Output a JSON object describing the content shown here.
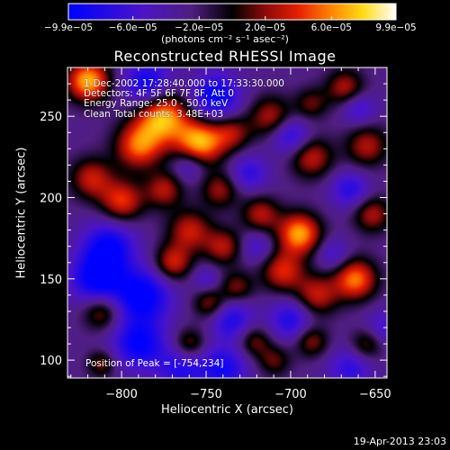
{
  "chart_data": {
    "type": "heatmap",
    "title": "Reconstructed RHESSI Image",
    "xlabel": "Heliocentric X (arcsec)",
    "ylabel": "Heliocentric Y (arcsec)",
    "xlim": [
      -832,
      -643
    ],
    "ylim": [
      89,
      280
    ],
    "x_ticks": [
      -800,
      -750,
      -700,
      -650
    ],
    "x_tick_labels": [
      "−800",
      "−750",
      "−700",
      "−650"
    ],
    "y_ticks": [
      100,
      150,
      200,
      250
    ],
    "y_tick_labels": [
      "100",
      "150",
      "200",
      "250"
    ],
    "colorbar": {
      "min": -9.9e-05,
      "max": 9.9e-05,
      "tick_labels": [
        "−9.9e−05",
        "−6.0e−05",
        "−2.0e−05",
        "2.0e−05",
        "6.0e−05",
        "9.9e−05"
      ],
      "tick_values": [
        -9.9e-05,
        -6e-05,
        -2e-05,
        2e-05,
        6e-05,
        9.9e-05
      ],
      "units_label": "(photons cm⁻² s⁻¹ asec⁻²)",
      "colors": [
        "#0000ff",
        "#4b0082",
        "#000000",
        "#8b0000",
        "#ff0000",
        "#ff8c00",
        "#ffff00",
        "#ffffff"
      ]
    },
    "info_lines": [
      "1-Dec-2002 17:28:40.000 to 17:33:30.000",
      "Detectors: 4F 5F 6F 7F 8F, Att 0",
      "Energy Range: 25.0 - 50.0 keV",
      "Clean     Total counts: 3.48E+03"
    ],
    "peak_label": "Position of Peak = [-754,234]",
    "blobs": [
      {
        "x": -820,
        "y": 272,
        "v": 1.0,
        "s": 9
      },
      {
        "x": -776,
        "y": 250,
        "v": 1.0,
        "s": 11
      },
      {
        "x": -790,
        "y": 232,
        "v": 0.8,
        "s": 10
      },
      {
        "x": -754,
        "y": 234,
        "v": 1.0,
        "s": 10
      },
      {
        "x": -735,
        "y": 240,
        "v": 0.5,
        "s": 8
      },
      {
        "x": -712,
        "y": 250,
        "v": 0.55,
        "s": 9
      },
      {
        "x": -688,
        "y": 258,
        "v": 0.4,
        "s": 7
      },
      {
        "x": -668,
        "y": 268,
        "v": 0.55,
        "s": 8
      },
      {
        "x": -688,
        "y": 225,
        "v": 0.6,
        "s": 9
      },
      {
        "x": -655,
        "y": 232,
        "v": 0.55,
        "s": 9
      },
      {
        "x": -818,
        "y": 212,
        "v": 0.6,
        "s": 9
      },
      {
        "x": -800,
        "y": 198,
        "v": 0.7,
        "s": 9
      },
      {
        "x": -775,
        "y": 205,
        "v": 0.55,
        "s": 8
      },
      {
        "x": -742,
        "y": 205,
        "v": 0.5,
        "s": 8
      },
      {
        "x": -760,
        "y": 180,
        "v": 0.6,
        "s": 9
      },
      {
        "x": -770,
        "y": 160,
        "v": 0.65,
        "s": 8
      },
      {
        "x": -740,
        "y": 170,
        "v": 0.55,
        "s": 8
      },
      {
        "x": -718,
        "y": 190,
        "v": 0.55,
        "s": 8
      },
      {
        "x": -695,
        "y": 178,
        "v": 0.95,
        "s": 9
      },
      {
        "x": -705,
        "y": 155,
        "v": 0.65,
        "s": 9
      },
      {
        "x": -685,
        "y": 140,
        "v": 0.6,
        "s": 9
      },
      {
        "x": -662,
        "y": 150,
        "v": 0.85,
        "s": 9
      },
      {
        "x": -652,
        "y": 190,
        "v": 0.55,
        "s": 8
      },
      {
        "x": -732,
        "y": 145,
        "v": 0.45,
        "s": 7
      },
      {
        "x": -748,
        "y": 135,
        "v": 0.5,
        "s": 7
      },
      {
        "x": -812,
        "y": 130,
        "v": 0.55,
        "s": 8
      },
      {
        "x": -760,
        "y": 110,
        "v": 0.5,
        "s": 7
      },
      {
        "x": -722,
        "y": 112,
        "v": 0.45,
        "s": 7
      },
      {
        "x": -710,
        "y": 100,
        "v": 0.4,
        "s": 7
      },
      {
        "x": -688,
        "y": 112,
        "v": 0.5,
        "s": 7
      },
      {
        "x": -812,
        "y": 98,
        "v": 0.45,
        "s": 6
      },
      {
        "x": -655,
        "y": 110,
        "v": 0.45,
        "s": 7
      },
      {
        "x": -785,
        "y": 270,
        "v": -0.7,
        "s": 10
      },
      {
        "x": -745,
        "y": 262,
        "v": -0.75,
        "s": 10
      },
      {
        "x": -700,
        "y": 238,
        "v": -0.55,
        "s": 8
      },
      {
        "x": -660,
        "y": 255,
        "v": -0.4,
        "s": 7
      },
      {
        "x": -808,
        "y": 170,
        "v": -0.7,
        "s": 11
      },
      {
        "x": -815,
        "y": 150,
        "v": -0.75,
        "s": 11
      },
      {
        "x": -788,
        "y": 140,
        "v": -0.8,
        "s": 12
      },
      {
        "x": -790,
        "y": 110,
        "v": -0.7,
        "s": 11
      },
      {
        "x": -765,
        "y": 95,
        "v": -0.5,
        "s": 10
      },
      {
        "x": -735,
        "y": 125,
        "v": -0.55,
        "s": 9
      },
      {
        "x": -740,
        "y": 95,
        "v": -0.6,
        "s": 10
      },
      {
        "x": -700,
        "y": 125,
        "v": -0.55,
        "s": 9
      },
      {
        "x": -665,
        "y": 95,
        "v": -0.45,
        "s": 9
      },
      {
        "x": -725,
        "y": 215,
        "v": -0.45,
        "s": 8
      },
      {
        "x": -665,
        "y": 205,
        "v": -0.5,
        "s": 8
      },
      {
        "x": -760,
        "y": 220,
        "v": -0.4,
        "s": 7
      },
      {
        "x": -720,
        "y": 170,
        "v": -0.35,
        "s": 7
      },
      {
        "x": -675,
        "y": 165,
        "v": -0.35,
        "s": 7
      },
      {
        "x": -750,
        "y": 150,
        "v": -0.3,
        "s": 6
      },
      {
        "x": -645,
        "y": 120,
        "v": -0.35,
        "s": 8
      }
    ]
  },
  "footer": {
    "timestamp": "19-Apr-2013 23:03"
  }
}
